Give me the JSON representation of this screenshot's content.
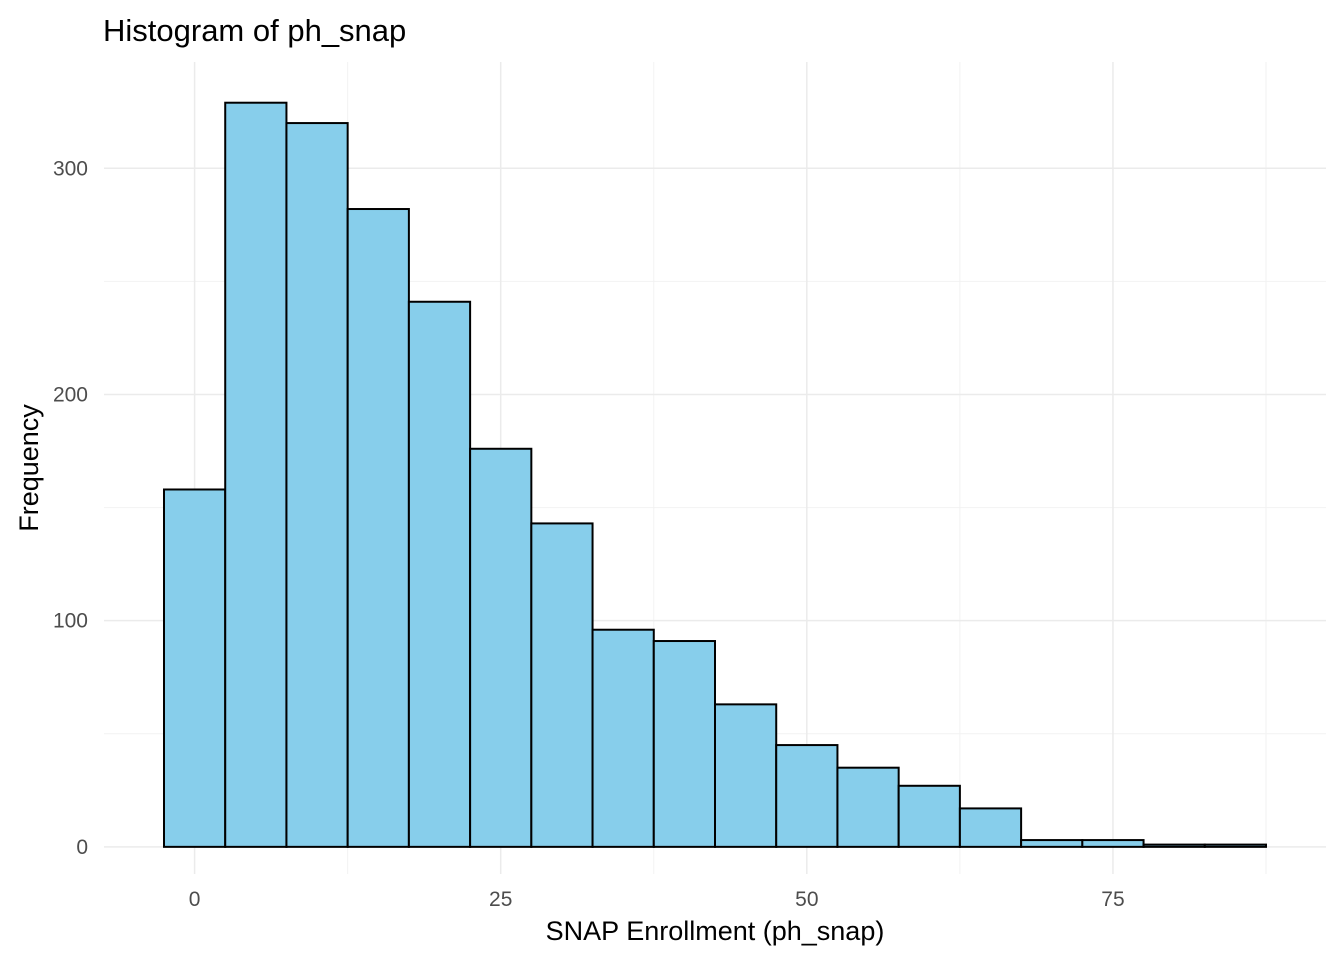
{
  "chart_data": {
    "type": "bar",
    "title": "Histogram of ph_snap",
    "xlabel": "SNAP Enrollment (ph_snap)",
    "ylabel": "Frequency",
    "bin_width": 5,
    "bins": [
      {
        "x_start": -2.5,
        "x_end": 2.5,
        "count": 158
      },
      {
        "x_start": 2.5,
        "x_end": 7.5,
        "count": 329
      },
      {
        "x_start": 7.5,
        "x_end": 12.5,
        "count": 320
      },
      {
        "x_start": 12.5,
        "x_end": 17.5,
        "count": 282
      },
      {
        "x_start": 17.5,
        "x_end": 22.5,
        "count": 241
      },
      {
        "x_start": 22.5,
        "x_end": 27.5,
        "count": 176
      },
      {
        "x_start": 27.5,
        "x_end": 32.5,
        "count": 143
      },
      {
        "x_start": 32.5,
        "x_end": 37.5,
        "count": 96
      },
      {
        "x_start": 37.5,
        "x_end": 42.5,
        "count": 91
      },
      {
        "x_start": 42.5,
        "x_end": 47.5,
        "count": 63
      },
      {
        "x_start": 47.5,
        "x_end": 52.5,
        "count": 45
      },
      {
        "x_start": 52.5,
        "x_end": 57.5,
        "count": 35
      },
      {
        "x_start": 57.5,
        "x_end": 62.5,
        "count": 27
      },
      {
        "x_start": 62.5,
        "x_end": 67.5,
        "count": 17
      },
      {
        "x_start": 67.5,
        "x_end": 72.5,
        "count": 3
      },
      {
        "x_start": 72.5,
        "x_end": 77.5,
        "count": 3
      },
      {
        "x_start": 77.5,
        "x_end": 82.5,
        "count": 1
      },
      {
        "x_start": 82.5,
        "x_end": 87.5,
        "count": 1
      }
    ],
    "xlim": [
      -7.4,
      92.4
    ],
    "ylim": [
      -12,
      347
    ],
    "x_ticks": [
      0,
      25,
      50,
      75
    ],
    "x_tick_labels": [
      "0",
      "25",
      "50",
      "75"
    ],
    "y_ticks": [
      0,
      100,
      200,
      300
    ],
    "y_tick_labels": [
      "0",
      "100",
      "200",
      "300"
    ],
    "grid": true,
    "fill_color": "#87CEEB",
    "edge_color": "#000000",
    "grid_color": "#EBEBEB",
    "legend": "none"
  }
}
